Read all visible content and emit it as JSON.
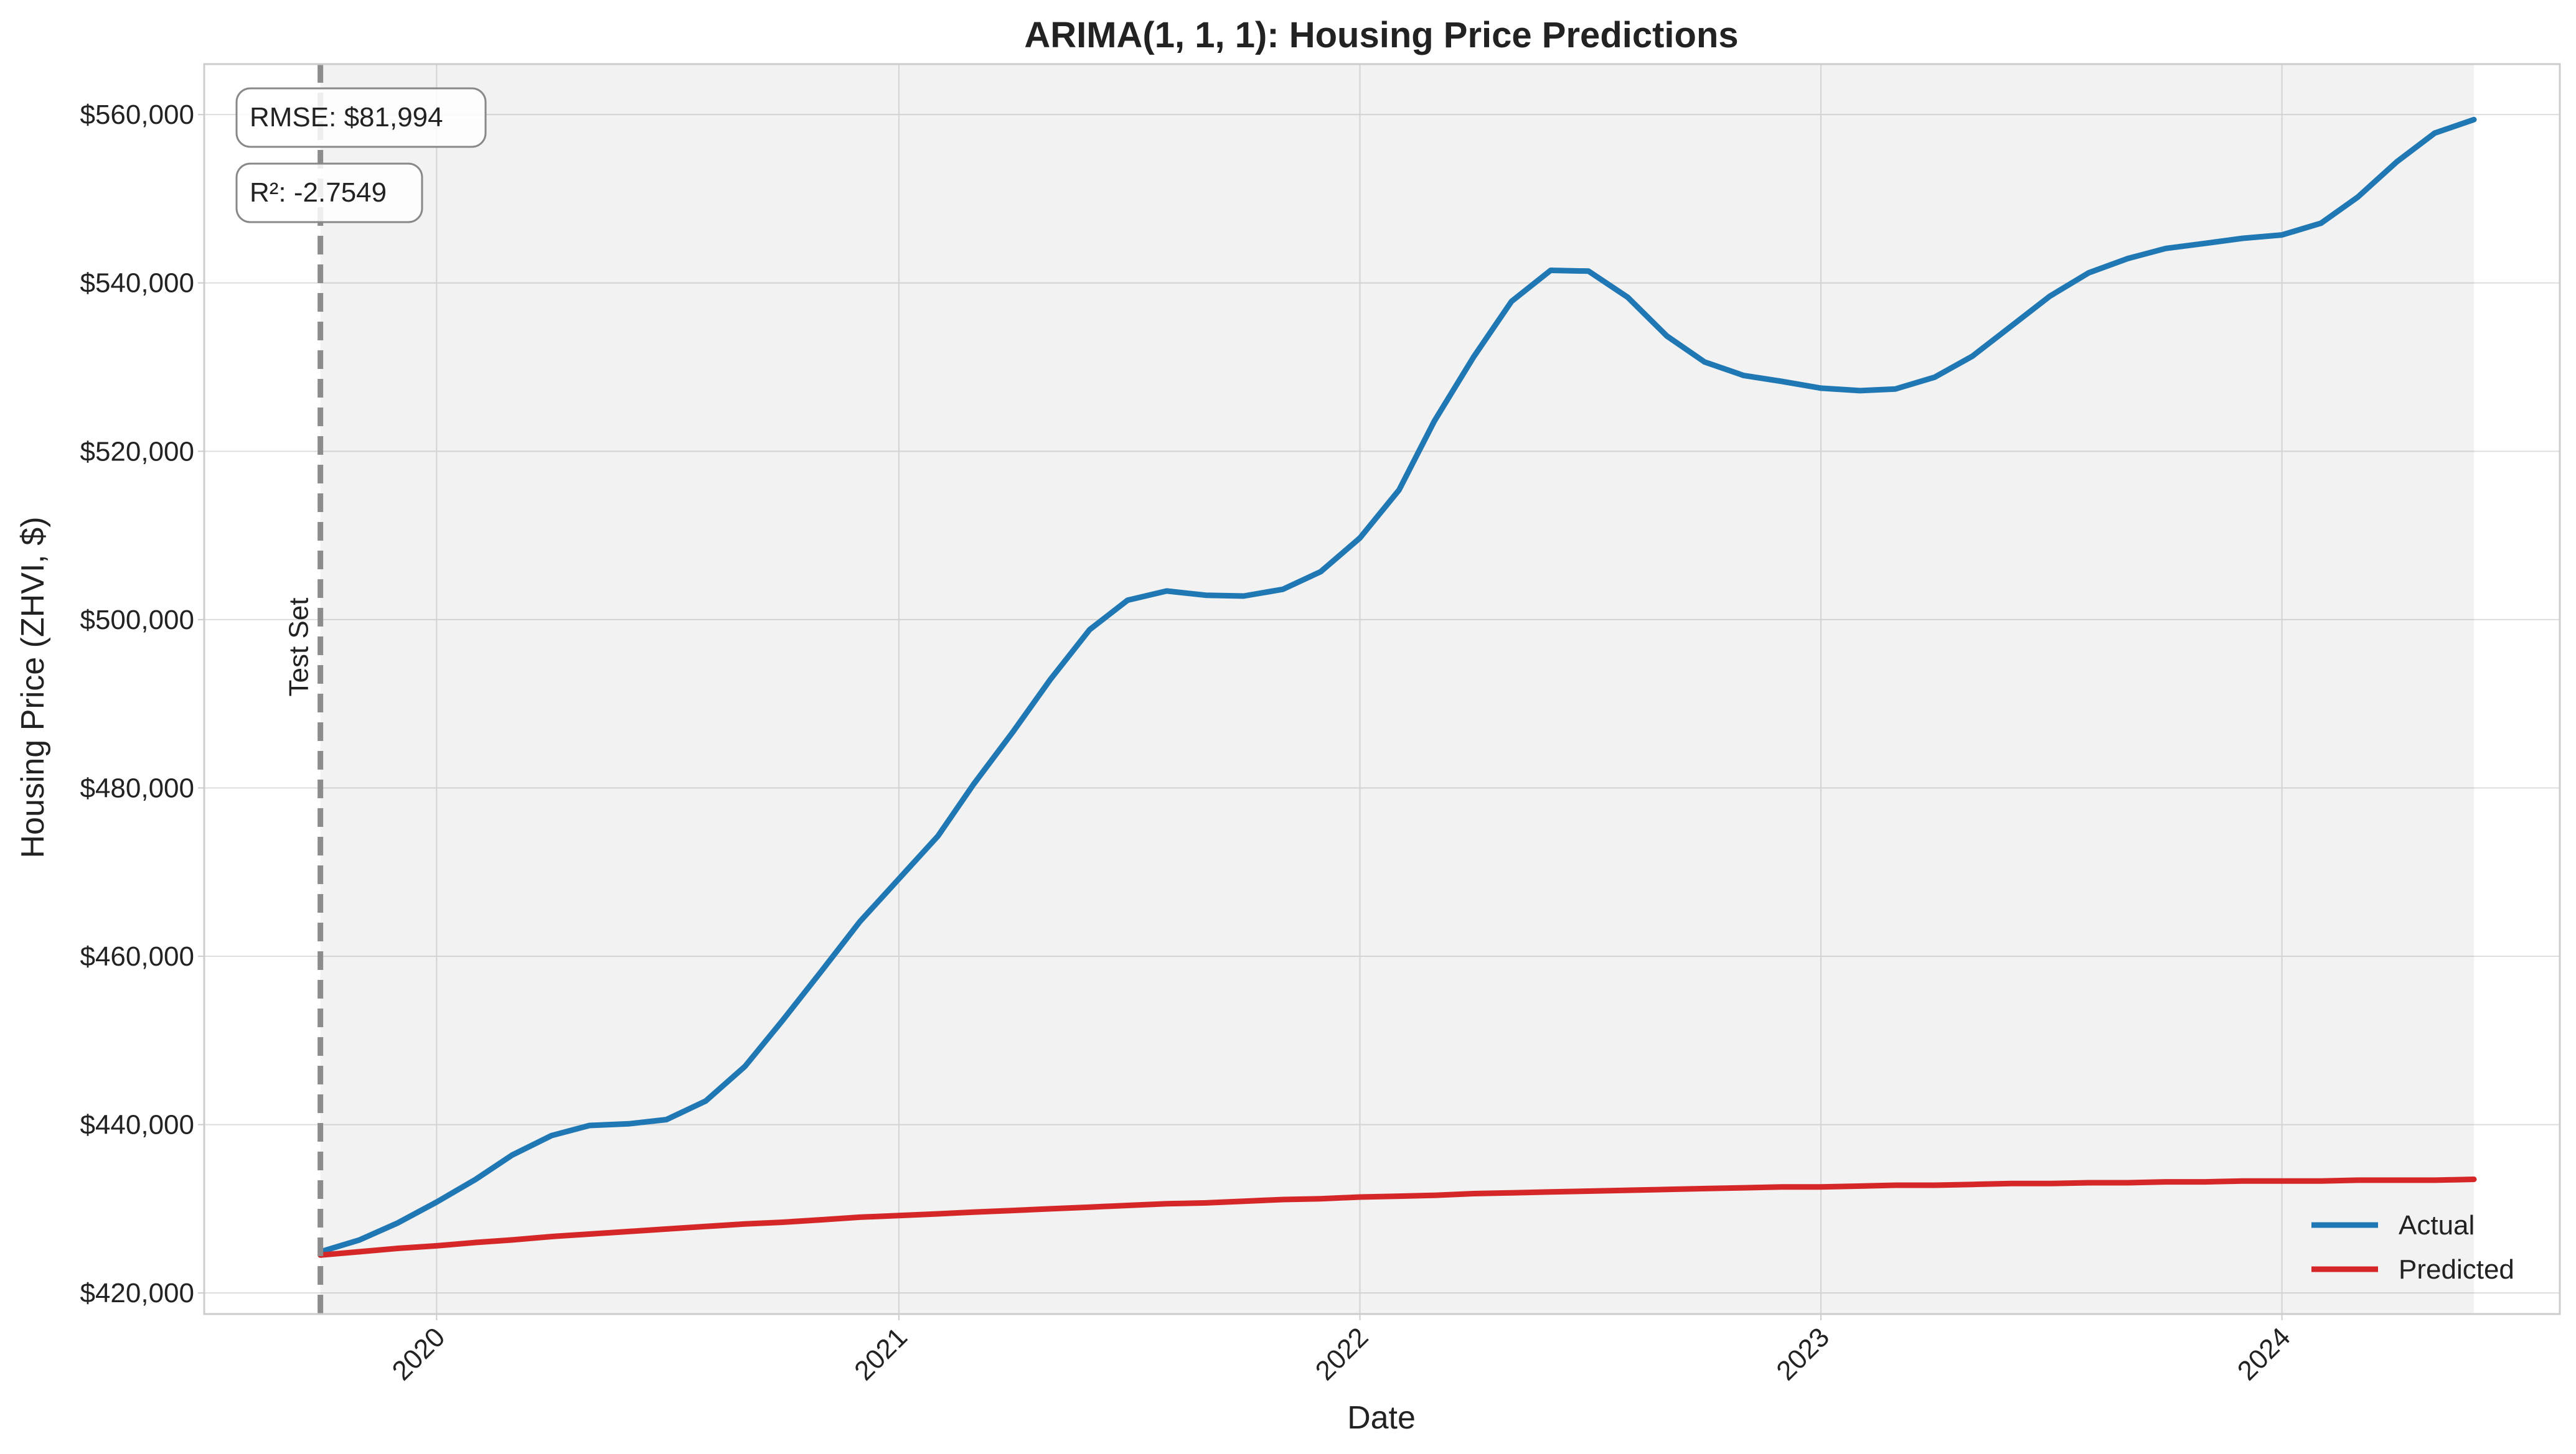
{
  "chart_data": {
    "type": "line",
    "title": "ARIMA(1, 1, 1): Housing Price Predictions",
    "xlabel": "Date",
    "ylabel": "Housing Price (ZHVI, $)",
    "x_ticks": [
      "2020",
      "2021",
      "2022",
      "2023",
      "2024"
    ],
    "y_ticks": [
      "$420,000",
      "$440,000",
      "$460,000",
      "$480,000",
      "$500,000",
      "$520,000",
      "$540,000",
      "$560,000"
    ],
    "ylim": [
      417500,
      566000
    ],
    "xlim": [
      "2019-07-01",
      "2024-08-08"
    ],
    "grid": true,
    "legend_position": "lower-right",
    "test_set_start": "2019-10-01",
    "test_set_label": "Test Set",
    "metrics": {
      "rmse_label": "RMSE: $81,994",
      "r2_label": "R²: -2.7549"
    },
    "x": [
      "2019-10-01",
      "2019-11-01",
      "2019-12-01",
      "2020-01-01",
      "2020-02-01",
      "2020-03-01",
      "2020-04-01",
      "2020-05-01",
      "2020-06-01",
      "2020-07-01",
      "2020-08-01",
      "2020-09-01",
      "2020-10-01",
      "2020-11-01",
      "2020-12-01",
      "2021-01-01",
      "2021-02-01",
      "2021-03-01",
      "2021-04-01",
      "2021-05-01",
      "2021-06-01",
      "2021-07-01",
      "2021-08-01",
      "2021-09-01",
      "2021-10-01",
      "2021-11-01",
      "2021-12-01",
      "2022-01-01",
      "2022-02-01",
      "2022-03-01",
      "2022-04-01",
      "2022-05-01",
      "2022-06-01",
      "2022-07-01",
      "2022-08-01",
      "2022-09-01",
      "2022-10-01",
      "2022-11-01",
      "2022-12-01",
      "2023-01-01",
      "2023-02-01",
      "2023-03-01",
      "2023-04-01",
      "2023-05-01",
      "2023-06-01",
      "2023-07-01",
      "2023-08-01",
      "2023-09-01",
      "2023-10-01",
      "2023-11-01",
      "2023-12-01",
      "2024-01-01",
      "2024-02-01",
      "2024-03-01",
      "2024-04-01",
      "2024-05-01",
      "2024-06-01"
    ],
    "series": [
      {
        "name": "Actual",
        "color": "#1f77b4",
        "values": [
          424900,
          426300,
          428300,
          430800,
          433500,
          436400,
          438700,
          439900,
          440100,
          440600,
          442800,
          446900,
          452400,
          458300,
          464100,
          469200,
          474300,
          480400,
          486600,
          492900,
          498800,
          502300,
          503400,
          502900,
          502800,
          503600,
          505700,
          509700,
          515400,
          523600,
          531200,
          537800,
          541500,
          541400,
          538300,
          533700,
          530600,
          529000,
          528300,
          527500,
          527200,
          527400,
          528800,
          531300,
          534900,
          538400,
          541200,
          542900,
          544100,
          544700,
          545300,
          545700,
          547100,
          550200,
          554400,
          557800,
          559400
        ]
      },
      {
        "name": "Predicted",
        "color": "#d62728",
        "values": [
          424500,
          424900,
          425300,
          425600,
          426000,
          426300,
          426700,
          427000,
          427300,
          427600,
          427900,
          428200,
          428400,
          428700,
          429000,
          429200,
          429400,
          429600,
          429800,
          430000,
          430200,
          430400,
          430600,
          430700,
          430900,
          431100,
          431200,
          431400,
          431500,
          431600,
          431800,
          431900,
          432000,
          432100,
          432200,
          432300,
          432400,
          432500,
          432600,
          432600,
          432700,
          432800,
          432800,
          432900,
          433000,
          433000,
          433100,
          433100,
          433200,
          433200,
          433300,
          433300,
          433300,
          433400,
          433400,
          433400,
          433500
        ]
      }
    ]
  }
}
